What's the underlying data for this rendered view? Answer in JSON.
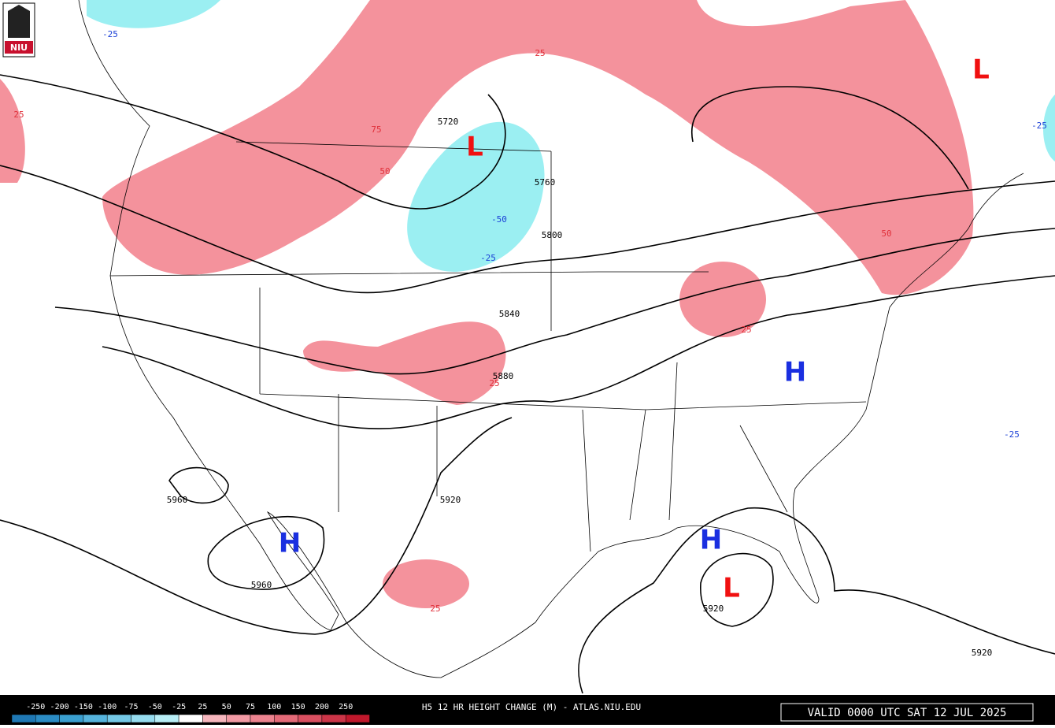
{
  "logo": "NIU",
  "height_contours": {
    "labels": [
      5720,
      5760,
      5800,
      5840,
      5880,
      5920,
      5960,
      5960,
      5920,
      5920
    ]
  },
  "height_change": {
    "labels": [
      -25,
      25,
      75,
      50,
      25,
      -50,
      -25,
      25,
      25,
      50,
      -25,
      -25,
      25
    ]
  },
  "centers": [
    "L",
    "L",
    "L",
    "H",
    "H",
    "H"
  ],
  "colorbar": {
    "levels": [
      -250,
      -200,
      -150,
      -100,
      -75,
      -50,
      -25,
      25,
      50,
      75,
      100,
      150,
      200,
      250
    ],
    "colors": [
      "#1f78b4",
      "#2b8cc4",
      "#3a9fd0",
      "#55b3dc",
      "#74c8e6",
      "#96dcef",
      "#b8eef6",
      "#ffffff",
      "#f6b6bd",
      "#f29aa4",
      "#ec838f",
      "#e46a78",
      "#d94f60",
      "#cc3548",
      "#c0182c"
    ]
  },
  "footer": {
    "title": "H5 12 HR HEIGHT CHANGE (M) - ATLAS.NIU.EDU",
    "valid": "VALID 0000 UTC SAT 12 JUL 2025"
  }
}
